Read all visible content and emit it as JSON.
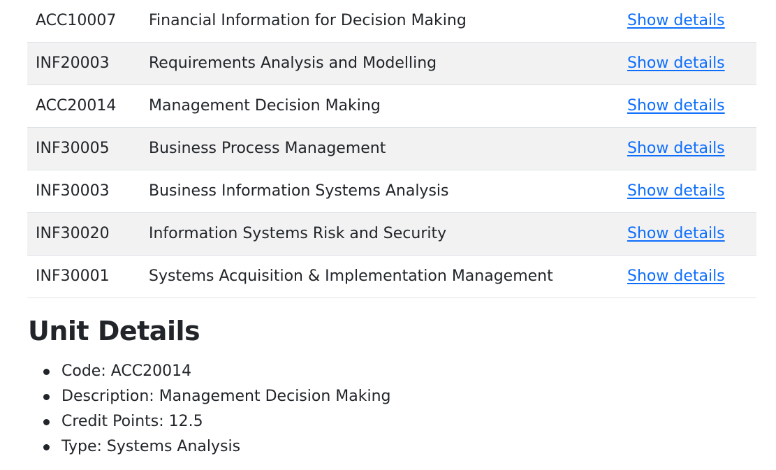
{
  "units_table": {
    "rows": [
      {
        "code": "ACC10007",
        "description": "Financial Information for Decision Making",
        "action": "Show details"
      },
      {
        "code": "INF20003",
        "description": "Requirements Analysis and Modelling",
        "action": "Show details"
      },
      {
        "code": "ACC20014",
        "description": "Management Decision Making",
        "action": "Show details"
      },
      {
        "code": "INF30005",
        "description": "Business Process Management",
        "action": "Show details"
      },
      {
        "code": "INF30003",
        "description": "Business Information Systems Analysis",
        "action": "Show details"
      },
      {
        "code": "INF30020",
        "description": "Information Systems Risk and Security",
        "action": "Show details"
      },
      {
        "code": "INF30001",
        "description": "Systems Acquisition & Implementation Management",
        "action": "Show details"
      }
    ]
  },
  "unit_details": {
    "title": "Unit Details",
    "items": [
      "Code: ACC20014",
      "Description: Management Decision Making",
      "Credit Points: 12.5",
      "Type: Systems Analysis"
    ]
  },
  "colors": {
    "link": "#0d6efd",
    "stripe": "#f2f2f2",
    "text": "#212529",
    "border": "#dee2e6"
  }
}
